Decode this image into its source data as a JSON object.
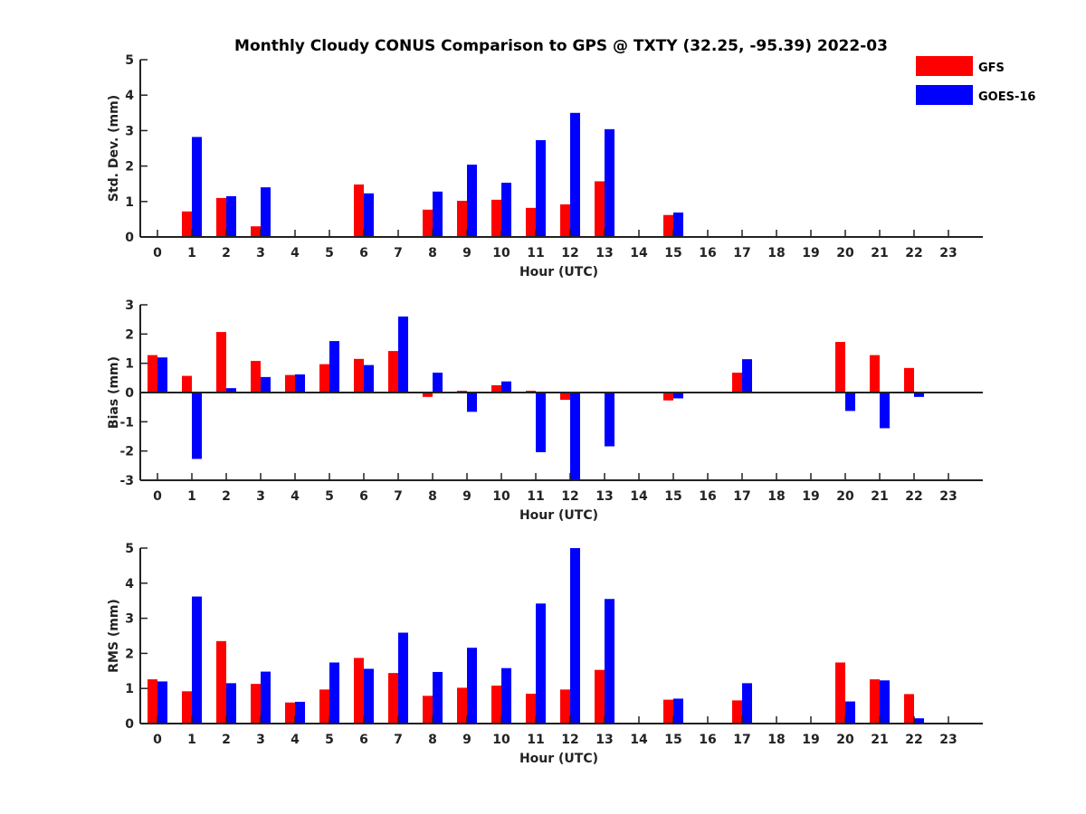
{
  "title": "Monthly Cloudy CONUS Comparison to GPS @ TXTY (32.25, -95.39) 2022-03",
  "legend": [
    {
      "label": "GFS",
      "color": "#ff0000"
    },
    {
      "label": "GOES-16",
      "color": "#0000ff"
    }
  ],
  "chart_data": [
    {
      "type": "bar",
      "name": "std-dev",
      "ylabel": "Std. Dev. (mm)",
      "xlabel": "Hour (UTC)",
      "ylim": [
        0,
        5
      ],
      "yticks": [
        0,
        1,
        2,
        3,
        4,
        5
      ],
      "categories": [
        "0",
        "1",
        "2",
        "3",
        "4",
        "5",
        "6",
        "7",
        "8",
        "9",
        "10",
        "11",
        "12",
        "13",
        "14",
        "15",
        "16",
        "17",
        "18",
        "19",
        "20",
        "21",
        "22",
        "23"
      ],
      "series": [
        {
          "name": "GFS",
          "color": "#ff0000",
          "values": [
            null,
            0.72,
            1.1,
            0.3,
            null,
            null,
            1.48,
            null,
            0.77,
            1.02,
            1.05,
            0.82,
            0.92,
            1.57,
            null,
            0.62,
            null,
            null,
            null,
            null,
            null,
            null,
            null,
            null
          ]
        },
        {
          "name": "GOES-16",
          "color": "#0000ff",
          "values": [
            null,
            2.82,
            1.15,
            1.4,
            null,
            null,
            1.23,
            null,
            1.28,
            2.04,
            1.53,
            2.73,
            3.5,
            3.04,
            null,
            0.69,
            null,
            null,
            null,
            null,
            null,
            null,
            null,
            null
          ]
        }
      ]
    },
    {
      "type": "bar",
      "name": "bias",
      "ylabel": "Bias (mm)",
      "xlabel": "Hour (UTC)",
      "ylim": [
        -3,
        3
      ],
      "yticks": [
        -3,
        -2,
        -1,
        0,
        1,
        2,
        3
      ],
      "categories": [
        "0",
        "1",
        "2",
        "3",
        "4",
        "5",
        "6",
        "7",
        "8",
        "9",
        "10",
        "11",
        "12",
        "13",
        "14",
        "15",
        "16",
        "17",
        "18",
        "19",
        "20",
        "21",
        "22",
        "23"
      ],
      "series": [
        {
          "name": "GFS",
          "color": "#ff0000",
          "values": [
            1.28,
            0.57,
            2.07,
            1.08,
            0.6,
            0.97,
            1.15,
            1.42,
            -0.15,
            0.06,
            0.25,
            0.06,
            -0.25,
            null,
            null,
            -0.27,
            null,
            0.68,
            null,
            null,
            1.73,
            1.28,
            0.84,
            null
          ]
        },
        {
          "name": "GOES-16",
          "color": "#0000ff",
          "values": [
            1.2,
            -2.27,
            0.15,
            0.53,
            0.62,
            1.76,
            0.94,
            2.6,
            0.68,
            -0.66,
            0.38,
            -2.04,
            -3.0,
            -1.84,
            null,
            -0.2,
            null,
            1.14,
            null,
            null,
            -0.63,
            -1.22,
            -0.15,
            null
          ]
        }
      ]
    },
    {
      "type": "bar",
      "name": "rms",
      "ylabel": "RMS (mm)",
      "xlabel": "Hour (UTC)",
      "ylim": [
        0,
        5
      ],
      "yticks": [
        0,
        1,
        2,
        3,
        4,
        5
      ],
      "categories": [
        "0",
        "1",
        "2",
        "3",
        "4",
        "5",
        "6",
        "7",
        "8",
        "9",
        "10",
        "11",
        "12",
        "13",
        "14",
        "15",
        "16",
        "17",
        "18",
        "19",
        "20",
        "21",
        "22",
        "23"
      ],
      "series": [
        {
          "name": "GFS",
          "color": "#ff0000",
          "values": [
            1.26,
            0.92,
            2.35,
            1.13,
            0.6,
            0.97,
            1.87,
            1.44,
            0.79,
            1.02,
            1.08,
            0.85,
            0.97,
            1.53,
            null,
            0.68,
            null,
            0.66,
            null,
            null,
            1.74,
            1.26,
            0.84,
            null
          ]
        },
        {
          "name": "GOES-16",
          "color": "#0000ff",
          "values": [
            1.2,
            3.62,
            1.15,
            1.48,
            0.62,
            1.74,
            1.56,
            2.59,
            1.47,
            2.16,
            1.58,
            3.42,
            5.0,
            3.55,
            null,
            0.71,
            null,
            1.15,
            null,
            null,
            0.63,
            1.23,
            0.15,
            null
          ]
        }
      ]
    }
  ]
}
